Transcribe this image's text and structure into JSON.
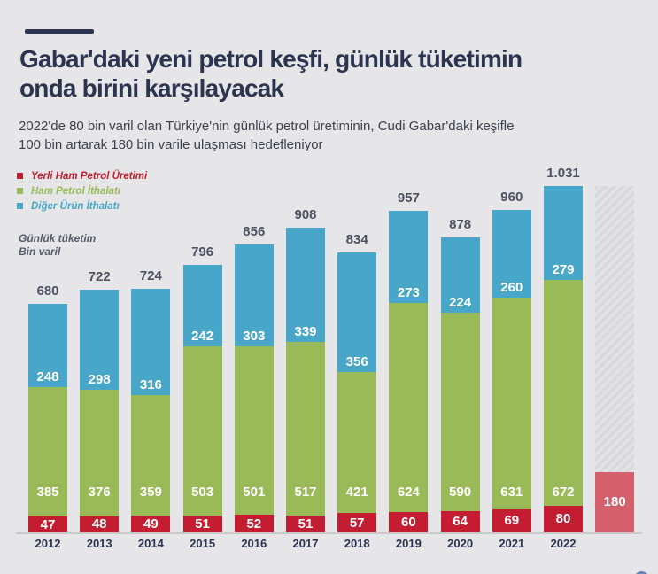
{
  "header": {
    "title_lines": [
      "Gabar'daki yeni petrol keşfi, günlük tüketimin",
      "onda birini karşılayacak"
    ],
    "subtitle_lines": [
      "2022'de 80 bin varil olan Türkiye'nin günlük petrol üretiminin, Cudi Gabar'daki keşifle",
      "100 bin artarak 180 bin varile ulaşması hedefleniyor"
    ]
  },
  "legend": {
    "items": [
      {
        "label": "Yerli Ham Petrol Üretimi",
        "color": "#c41d31"
      },
      {
        "label": "Ham Petrol İthalatı",
        "color": "#9ab957"
      },
      {
        "label": "Diğer Ürün İthalatı",
        "color": "#48a7c8"
      }
    ]
  },
  "axis_note_lines": [
    "Günlük tüketim",
    "Bin varil"
  ],
  "chart_data": {
    "type": "bar",
    "stacked": true,
    "title": "Gabar'daki yeni petrol keşfi, günlük tüketimin onda birini karşılayacak",
    "ylabel": "Günlük tüketim, Bin varil",
    "ylim": [
      0,
      1031
    ],
    "grid": false,
    "legend_position": "top-left",
    "categories": [
      "2012",
      "2013",
      "2014",
      "2015",
      "2016",
      "2017",
      "2018",
      "2019",
      "2020",
      "2021",
      "2022"
    ],
    "series": [
      {
        "name": "Yerli Ham Petrol Üretimi",
        "color": "#c41d31",
        "values": [
          47,
          48,
          49,
          51,
          52,
          51,
          57,
          60,
          64,
          69,
          80
        ]
      },
      {
        "name": "Ham Petrol İthalatı",
        "color": "#9ab957",
        "values": [
          385,
          376,
          359,
          503,
          501,
          517,
          421,
          624,
          590,
          631,
          672
        ]
      },
      {
        "name": "Diğer Ürün İthalatı",
        "color": "#48a7c8",
        "values": [
          248,
          298,
          316,
          242,
          303,
          339,
          356,
          273,
          224,
          260,
          279
        ]
      }
    ],
    "totals_labels": [
      "680",
      "722",
      "724",
      "796",
      "856",
      "908",
      "834",
      "957",
      "878",
      "960",
      "1.031"
    ],
    "projection": {
      "label": "180",
      "value": 180,
      "color": "#d5606b",
      "hatch_top_value": 1031
    },
    "colors": {
      "background": "#e6e6e8",
      "title": "#2d3450",
      "total_label": "#4d5263",
      "year_label": "#2b3251",
      "axis_line": "#c9c9cb",
      "value_label": "#ffffff"
    }
  }
}
